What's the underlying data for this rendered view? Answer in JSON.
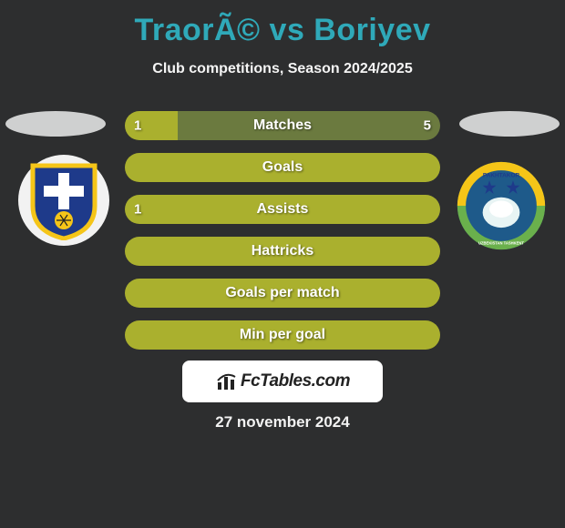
{
  "title": "TraorÃ© vs Boriyev",
  "subtitle": "Club competitions, Season 2024/2025",
  "date": "27 november 2024",
  "branding": "FcTables.com",
  "colors": {
    "title": "#2fa9b9",
    "player1": "#aab02e",
    "player2": "#6b7a3f"
  },
  "player1_crest": {
    "bg": "#f2f2f2",
    "shield": "#1e3a8a",
    "stripe": "#f5c518"
  },
  "player2_crest": {
    "ring": "#2b7a78",
    "field": "#1e5a8a",
    "top_band": "#f5c518",
    "bottom_band": "#6ab04c",
    "text": "PAKHTAKOR",
    "sub": "UZBEKISTAN TASHKENT"
  },
  "bars": [
    {
      "label": "Matches",
      "p1": 1,
      "p2": 5,
      "show_values": true
    },
    {
      "label": "Goals",
      "p1": 0,
      "p2": 0,
      "show_values": false
    },
    {
      "label": "Assists",
      "p1": 1,
      "p2": 0,
      "show_values": "left"
    },
    {
      "label": "Hattricks",
      "p1": 0,
      "p2": 0,
      "show_values": false
    },
    {
      "label": "Goals per match",
      "p1": 0,
      "p2": 0,
      "show_values": false
    },
    {
      "label": "Min per goal",
      "p1": 0,
      "p2": 0,
      "show_values": false
    }
  ]
}
